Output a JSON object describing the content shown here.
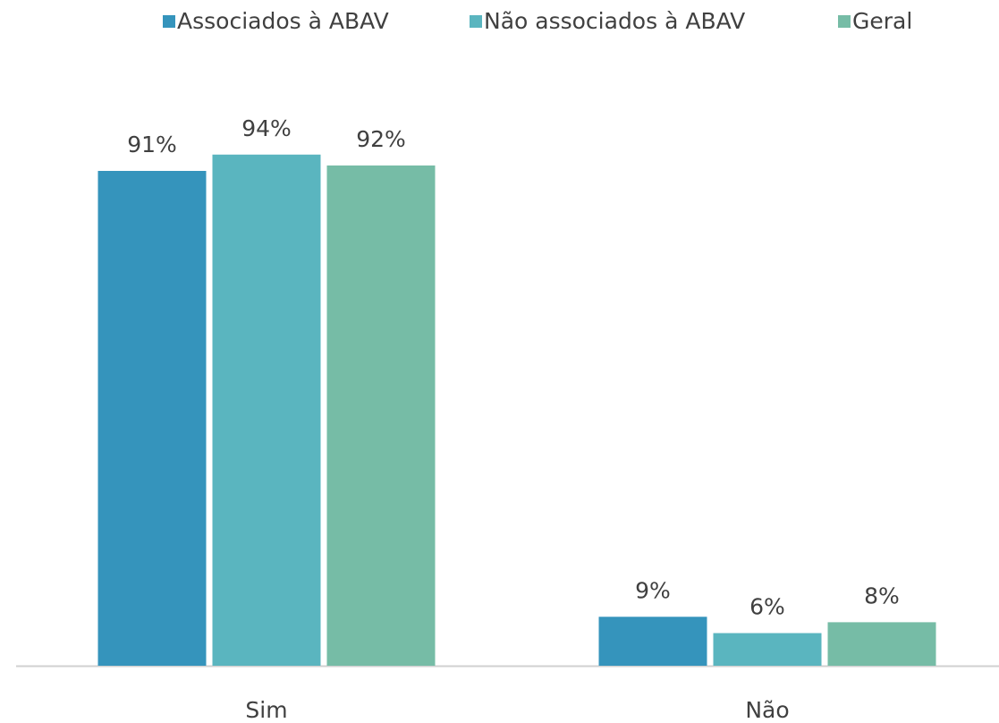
{
  "chart_data": {
    "type": "bar",
    "categories": [
      "Sim",
      "Não"
    ],
    "series": [
      {
        "name": "Associados à ABAV",
        "color": "#3594bc",
        "values": [
          91,
          9
        ],
        "value_labels": [
          "91%",
          "9%"
        ]
      },
      {
        "name": "Não associados à ABAV",
        "color": "#5ab5bf",
        "values": [
          94,
          6
        ],
        "value_labels": [
          "94%",
          "6%"
        ]
      },
      {
        "name": "Geral",
        "color": "#76bca6",
        "values": [
          92,
          8
        ],
        "value_labels": [
          "92%",
          "8%"
        ]
      }
    ],
    "legend": "top"
  }
}
